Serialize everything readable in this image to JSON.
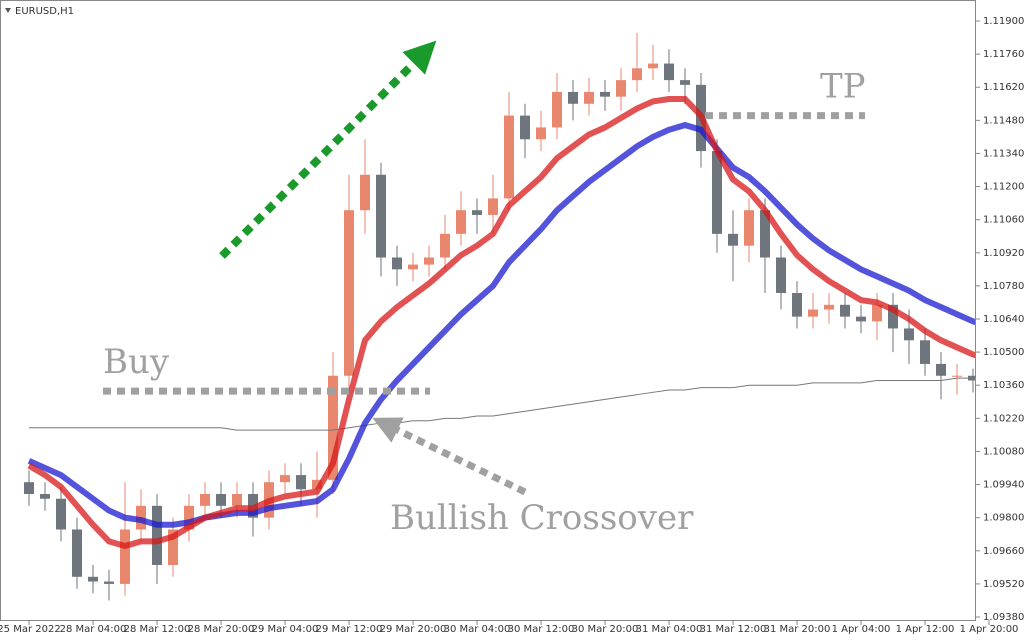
{
  "chart_data": {
    "type": "candlestick",
    "title": "EURUSD,H1",
    "categories": [
      "25 Mar 2022",
      null,
      null,
      null,
      "28 Mar 04:00",
      null,
      null,
      null,
      "28 Mar 12:00",
      null,
      null,
      null,
      "28 Mar 20:00",
      null,
      null,
      null,
      "29 Mar 04:00",
      null,
      null,
      null,
      "29 Mar 12:00",
      null,
      null,
      null,
      "29 Mar 20:00",
      null,
      null,
      null,
      "30 Mar 04:00",
      null,
      null,
      null,
      "30 Mar 12:00",
      null,
      null,
      null,
      "30 Mar 20:00",
      null,
      null,
      null,
      "31 Mar 04:00",
      null,
      null,
      null,
      "31 Mar 12:00",
      null,
      null,
      null,
      "31 Mar 20:00",
      null,
      null,
      null,
      "1 Apr 04:00",
      null,
      null,
      null,
      "1 Apr 12:00",
      null,
      null,
      null,
      "1 Apr 20:00"
    ],
    "open": [
      1.0995,
      1.099,
      1.0988,
      1.0975,
      1.0955,
      1.0953,
      1.0952,
      1.0975,
      1.0985,
      1.096,
      1.0975,
      1.0985,
      1.099,
      1.0985,
      1.099,
      1.098,
      1.0995,
      1.0998,
      1.0992,
      1.0996,
      1.104,
      1.111,
      1.1125,
      1.109,
      1.1085,
      1.1087,
      1.109,
      1.11,
      1.111,
      1.1108,
      1.1115,
      1.115,
      1.114,
      1.1145,
      1.116,
      1.1155,
      1.116,
      1.1158,
      1.1165,
      1.117,
      1.1172,
      1.1165,
      1.1163,
      1.1135,
      1.11,
      1.1095,
      1.111,
      1.109,
      1.1075,
      1.1065,
      1.1068,
      1.107,
      1.1065,
      1.1063,
      1.107,
      1.106,
      1.1055,
      1.1045,
      1.104,
      1.104,
      1.1038
    ],
    "high": [
      1.1,
      1.0995,
      1.0993,
      1.098,
      1.096,
      1.0958,
      1.0995,
      1.0992,
      1.099,
      1.098,
      1.099,
      1.0995,
      1.0995,
      1.0995,
      1.0995,
      1.1,
      1.1003,
      1.1003,
      1.1008,
      1.105,
      1.1125,
      1.114,
      1.113,
      1.1095,
      1.1092,
      1.1095,
      1.1108,
      1.1118,
      1.1115,
      1.1125,
      1.116,
      1.1155,
      1.1152,
      1.1168,
      1.1165,
      1.1166,
      1.1165,
      1.117,
      1.1185,
      1.118,
      1.1178,
      1.117,
      1.1168,
      1.114,
      1.111,
      1.1115,
      1.1115,
      1.1095,
      1.108,
      1.1075,
      1.1075,
      1.1075,
      1.107,
      1.1075,
      1.1075,
      1.1068,
      1.106,
      1.105,
      1.1045,
      1.1043,
      1.104
    ],
    "low": [
      1.0985,
      1.0983,
      1.097,
      1.095,
      1.0948,
      1.0945,
      1.0947,
      1.097,
      1.0952,
      1.0955,
      1.097,
      1.098,
      1.098,
      1.098,
      1.0972,
      1.0975,
      1.099,
      1.0985,
      1.098,
      1.099,
      1.1035,
      1.11,
      1.1082,
      1.1078,
      1.108,
      1.1082,
      1.1085,
      1.1095,
      1.11,
      1.11,
      1.111,
      1.1132,
      1.1135,
      1.114,
      1.1148,
      1.115,
      1.1152,
      1.1152,
      1.116,
      1.1165,
      1.116,
      1.1155,
      1.1128,
      1.1092,
      1.108,
      1.1088,
      1.1075,
      1.1068,
      1.106,
      1.106,
      1.1062,
      1.106,
      1.1058,
      1.1055,
      1.105,
      1.1045,
      1.104,
      1.103,
      1.1032,
      1.1033,
      1.1034
    ],
    "close": [
      1.099,
      1.0988,
      1.0975,
      1.0955,
      1.0953,
      1.0952,
      1.0975,
      1.0985,
      1.096,
      1.0975,
      1.0985,
      1.099,
      1.0985,
      1.099,
      1.098,
      1.0995,
      1.0998,
      1.0992,
      1.0996,
      1.104,
      1.111,
      1.1125,
      1.109,
      1.1085,
      1.1087,
      1.109,
      1.11,
      1.111,
      1.1108,
      1.1115,
      1.115,
      1.114,
      1.1145,
      1.116,
      1.1155,
      1.116,
      1.1158,
      1.1165,
      1.117,
      1.1172,
      1.1165,
      1.1163,
      1.1135,
      1.11,
      1.1095,
      1.111,
      1.109,
      1.1075,
      1.1065,
      1.1068,
      1.107,
      1.1065,
      1.1063,
      1.107,
      1.106,
      1.1055,
      1.1045,
      1.104,
      1.104,
      1.1038,
      1.1037
    ],
    "up_color": "#e8866e",
    "down_color": "#6e757c",
    "series": [
      {
        "color": "#777777",
        "values": [
          1.1018,
          1.1018,
          1.1018,
          1.1018,
          1.1018,
          1.1018,
          1.1018,
          1.1018,
          1.1018,
          1.1018,
          1.1018,
          1.1018,
          1.1018,
          1.1017,
          1.1017,
          1.1017,
          1.1017,
          1.1017,
          1.1017,
          1.1017,
          1.1018,
          1.1019,
          1.102,
          1.102,
          1.1021,
          1.1021,
          1.1022,
          1.1022,
          1.1023,
          1.1023,
          1.1024,
          1.1025,
          1.1026,
          1.1027,
          1.1028,
          1.1029,
          1.103,
          1.1031,
          1.1032,
          1.1033,
          1.1034,
          1.1034,
          1.1035,
          1.1035,
          1.1035,
          1.1036,
          1.1036,
          1.1036,
          1.1036,
          1.1037,
          1.1037,
          1.1037,
          1.1037,
          1.1038,
          1.1038,
          1.1038,
          1.1038,
          1.1038,
          1.1039,
          1.1039,
          1.1039
        ]
      },
      {
        "color": "#1a1ad0",
        "values": [
          1.1004,
          1.1001,
          1.0998,
          1.0993,
          1.0988,
          1.0983,
          1.098,
          1.0979,
          1.0977,
          1.0977,
          1.0978,
          1.098,
          1.0981,
          1.0982,
          1.0982,
          1.0984,
          1.0985,
          1.0986,
          1.0987,
          1.0992,
          1.1005,
          1.102,
          1.103,
          1.1038,
          1.1045,
          1.1052,
          1.1059,
          1.1066,
          1.1072,
          1.1078,
          1.1088,
          1.1095,
          1.1102,
          1.111,
          1.1116,
          1.1122,
          1.1127,
          1.1132,
          1.1137,
          1.1141,
          1.1144,
          1.1146,
          1.1144,
          1.1136,
          1.1128,
          1.1124,
          1.1118,
          1.1111,
          1.1104,
          1.1098,
          1.1093,
          1.1089,
          1.1085,
          1.1082,
          1.1079,
          1.1076,
          1.1072,
          1.1069,
          1.1066,
          1.1063,
          1.1061
        ]
      },
      {
        "color": "#d81818",
        "values": [
          1.1002,
          1.0998,
          1.0993,
          1.0985,
          1.0977,
          1.097,
          1.0968,
          1.097,
          1.097,
          1.0972,
          1.0976,
          1.098,
          1.0982,
          1.0984,
          1.0984,
          1.0987,
          1.0989,
          1.099,
          1.0991,
          1.1003,
          1.103,
          1.1055,
          1.1063,
          1.1069,
          1.1074,
          1.1079,
          1.1085,
          1.1091,
          1.1095,
          1.11,
          1.1112,
          1.1118,
          1.1124,
          1.1132,
          1.1137,
          1.1142,
          1.1145,
          1.1149,
          1.1153,
          1.1156,
          1.1157,
          1.1157,
          1.115,
          1.1135,
          1.1123,
          1.1118,
          1.111,
          1.11,
          1.1091,
          1.1085,
          1.108,
          1.1076,
          1.1072,
          1.1071,
          1.1068,
          1.1064,
          1.1059,
          1.1055,
          1.1052,
          1.1049,
          1.1047
        ]
      }
    ],
    "annotations": [
      {
        "text": "Buy",
        "value": 1.10335
      },
      {
        "text": "TP",
        "value": 1.115
      },
      {
        "text": "Bullish Crossover"
      }
    ],
    "ylim": [
      1.0938,
      1.119
    ],
    "yticks": [
      {
        "value": 1.119,
        "label": "1.11900"
      },
      {
        "value": 1.1176,
        "label": "1.11760"
      },
      {
        "value": 1.1162,
        "label": "1.11620"
      },
      {
        "value": 1.1148,
        "label": "1.11480"
      },
      {
        "value": 1.1134,
        "label": "1.11340"
      },
      {
        "value": 1.112,
        "label": "1.11200"
      },
      {
        "value": 1.1106,
        "label": "1.11060"
      },
      {
        "value": 1.1092,
        "label": "1.10920"
      },
      {
        "value": 1.1078,
        "label": "1.10780"
      },
      {
        "value": 1.1064,
        "label": "1.10640"
      },
      {
        "value": 1.105,
        "label": "1.10500"
      },
      {
        "value": 1.1036,
        "label": "1.10360"
      },
      {
        "value": 1.1022,
        "label": "1.10220"
      },
      {
        "value": 1.1008,
        "label": "1.10080"
      },
      {
        "value": 1.0994,
        "label": "1.09940"
      },
      {
        "value": 1.098,
        "label": "1.09800"
      },
      {
        "value": 1.0966,
        "label": "1.09660"
      },
      {
        "value": 1.0952,
        "label": "1.09520"
      },
      {
        "value": 1.0938,
        "label": "1.09380"
      }
    ]
  }
}
